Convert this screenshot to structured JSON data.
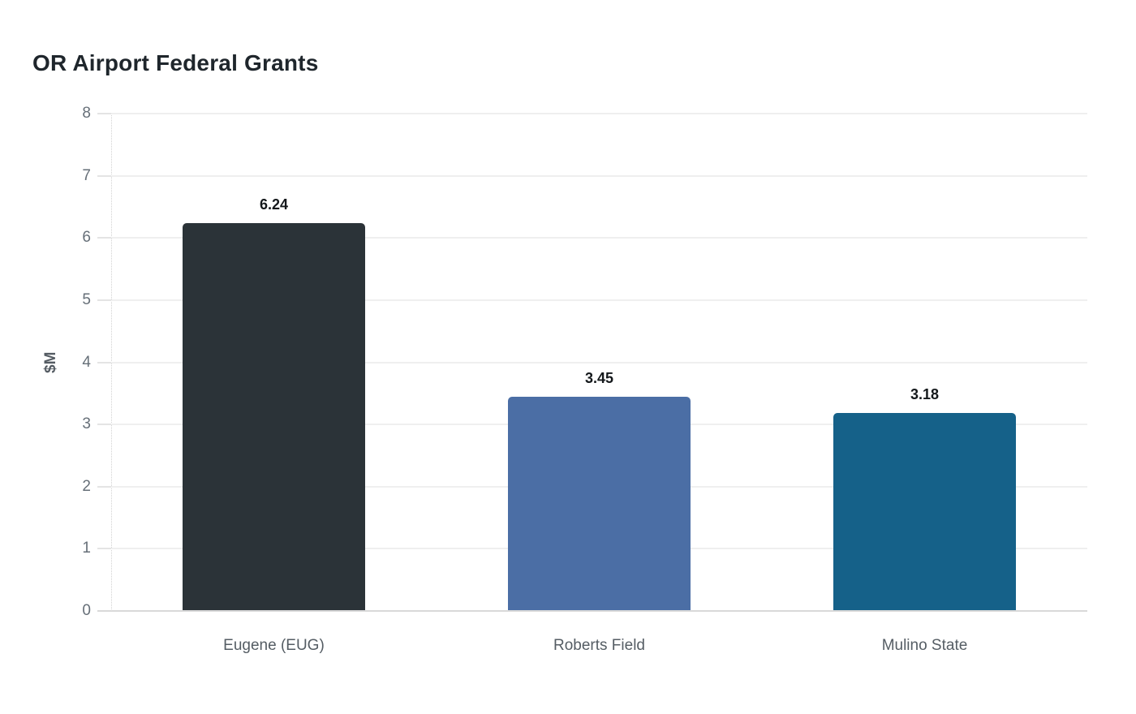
{
  "chart_data": {
    "type": "bar",
    "title": "OR Airport Federal Grants",
    "categories": [
      "Eugene (EUG)",
      "Roberts Field",
      "Mulino State"
    ],
    "values": [
      6.24,
      3.45,
      3.18
    ],
    "value_labels": [
      "6.24",
      "3.45",
      "3.18"
    ],
    "bar_colors": [
      "#2b3338",
      "#4b6ea5",
      "#156189"
    ],
    "xlabel": "",
    "ylabel": "$M",
    "ylim": [
      0,
      8
    ],
    "yticks": [
      0,
      1,
      2,
      3,
      4,
      5,
      6,
      7,
      8
    ],
    "grid": "horizontal",
    "legend": "none"
  },
  "colors": {
    "background": "#ffffff",
    "title_text": "#1f262c",
    "value_label_text": "#14181b",
    "axis_label_text": "#555c63",
    "x_tick_text": "#555d64",
    "y_tick_text": "#666f78",
    "gridline": "#efefef",
    "axis_line": "#d9d9d9"
  }
}
